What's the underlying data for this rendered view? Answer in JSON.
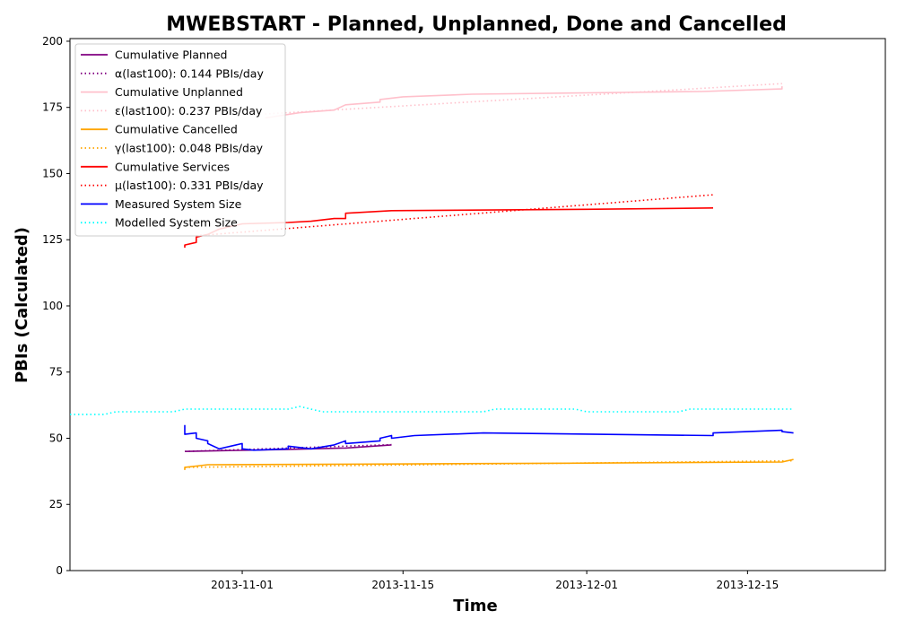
{
  "chart_data": {
    "type": "line",
    "title": "MWEBSTART - Planned, Unplanned, Done  and Cancelled",
    "xlabel": "Time",
    "ylabel": "PBIs (Calculated)",
    "xlim": [
      "2013-10-17",
      "2013-12-27"
    ],
    "ylim": [
      0,
      201
    ],
    "x_ticks": [
      "2013-11-01",
      "2013-11-15",
      "2013-12-01",
      "2013-12-15"
    ],
    "y_ticks": [
      0,
      25,
      50,
      75,
      100,
      125,
      150,
      175,
      200
    ],
    "legend_position": "upper-left",
    "grid": false,
    "series": [
      {
        "name": "Cumulative Planned",
        "color": "#800080",
        "style": "solid",
        "points": [
          [
            "2013-10-27",
            45
          ],
          [
            "2013-11-05",
            45.8
          ],
          [
            "2013-11-10",
            46.3
          ],
          [
            "2013-11-14",
            47.5
          ]
        ]
      },
      {
        "name": "α(last100): 0.144 PBIs/day",
        "color": "#800080",
        "style": "dotted",
        "points": [
          [
            "2013-10-27",
            45
          ],
          [
            "2013-11-14",
            47.6
          ]
        ]
      },
      {
        "name": "Cumulative Unplanned",
        "color": "#ffc0cb",
        "style": "solid",
        "points": [
          [
            "2013-11-03",
            171
          ],
          [
            "2013-11-06",
            173
          ],
          [
            "2013-11-09",
            174
          ],
          [
            "2013-11-10",
            176
          ],
          [
            "2013-11-13",
            177
          ],
          [
            "2013-11-13",
            178
          ],
          [
            "2013-11-15",
            179
          ],
          [
            "2013-11-21",
            180
          ],
          [
            "2013-12-01",
            180.5
          ],
          [
            "2013-12-11",
            181
          ],
          [
            "2013-12-18",
            182
          ],
          [
            "2013-12-18",
            183
          ]
        ]
      },
      {
        "name": "ε(last100): 0.237 PBIs/day",
        "color": "#ffc0cb",
        "style": "dotted",
        "points": [
          [
            "2013-11-03",
            172.5
          ],
          [
            "2013-12-18",
            184
          ]
        ]
      },
      {
        "name": "Cumulative Cancelled",
        "color": "#ffa500",
        "style": "solid",
        "points": [
          [
            "2013-10-27",
            38
          ],
          [
            "2013-10-27",
            39
          ],
          [
            "2013-10-28",
            39.5
          ],
          [
            "2013-10-29",
            40
          ],
          [
            "2013-11-10",
            40.2
          ],
          [
            "2013-12-01",
            40.6
          ],
          [
            "2013-12-18",
            41
          ],
          [
            "2013-12-19",
            42
          ]
        ]
      },
      {
        "name": "γ(last100): 0.048 PBIs/day",
        "color": "#ffa500",
        "style": "dotted",
        "points": [
          [
            "2013-10-27",
            39
          ],
          [
            "2013-12-19",
            41.5
          ]
        ]
      },
      {
        "name": "Cumulative Services",
        "color": "#ff0000",
        "style": "solid",
        "points": [
          [
            "2013-10-27",
            122
          ],
          [
            "2013-10-27",
            123
          ],
          [
            "2013-10-28",
            124
          ],
          [
            "2013-10-28",
            126
          ],
          [
            "2013-10-29",
            127
          ],
          [
            "2013-10-30",
            129
          ],
          [
            "2013-11-01",
            131
          ],
          [
            "2013-11-05",
            131.5
          ],
          [
            "2013-11-07",
            132
          ],
          [
            "2013-11-09",
            133
          ],
          [
            "2013-11-10",
            133
          ],
          [
            "2013-11-10",
            135
          ],
          [
            "2013-11-14",
            136
          ],
          [
            "2013-12-01",
            136.5
          ],
          [
            "2013-12-12",
            137
          ]
        ]
      },
      {
        "name": "μ(last100): 0.331 PBIs/day",
        "color": "#ff0000",
        "style": "dotted",
        "points": [
          [
            "2013-10-28",
            126.5
          ],
          [
            "2013-12-12",
            142
          ]
        ]
      },
      {
        "name": "Measured System Size",
        "color": "#0000ff",
        "style": "solid",
        "points": [
          [
            "2013-10-27",
            55
          ],
          [
            "2013-10-27",
            52
          ],
          [
            "2013-10-27",
            51.5
          ],
          [
            "2013-10-28",
            52
          ],
          [
            "2013-10-28",
            50
          ],
          [
            "2013-10-29",
            49
          ],
          [
            "2013-10-29",
            48
          ],
          [
            "2013-10-30",
            46
          ],
          [
            "2013-10-31",
            47
          ],
          [
            "2013-11-01",
            48
          ],
          [
            "2013-11-01",
            46
          ],
          [
            "2013-11-02",
            45.5
          ],
          [
            "2013-11-05",
            46
          ],
          [
            "2013-11-05",
            47
          ],
          [
            "2013-11-07",
            46
          ],
          [
            "2013-11-09",
            47.5
          ],
          [
            "2013-11-10",
            49
          ],
          [
            "2013-11-10",
            48
          ],
          [
            "2013-11-13",
            49
          ],
          [
            "2013-11-13",
            50
          ],
          [
            "2013-11-14",
            51
          ],
          [
            "2013-11-14",
            50
          ],
          [
            "2013-11-16",
            51
          ],
          [
            "2013-11-22",
            52
          ],
          [
            "2013-12-12",
            51
          ],
          [
            "2013-12-12",
            52
          ],
          [
            "2013-12-18",
            53
          ],
          [
            "2013-12-18",
            52.5
          ],
          [
            "2013-12-19",
            52
          ]
        ]
      },
      {
        "name": "Modelled System Size",
        "color": "#00ffff",
        "style": "dotted",
        "points": [
          [
            "2013-10-17",
            59
          ],
          [
            "2013-10-20",
            59
          ],
          [
            "2013-10-21",
            60
          ],
          [
            "2013-10-26",
            60
          ],
          [
            "2013-10-27",
            61
          ],
          [
            "2013-11-05",
            61
          ],
          [
            "2013-11-06",
            62
          ],
          [
            "2013-11-08",
            60
          ],
          [
            "2013-11-22",
            60
          ],
          [
            "2013-11-23",
            61
          ],
          [
            "2013-11-30",
            61
          ],
          [
            "2013-12-01",
            60
          ],
          [
            "2013-12-09",
            60
          ],
          [
            "2013-12-10",
            61
          ],
          [
            "2013-12-19",
            61
          ]
        ]
      }
    ]
  }
}
